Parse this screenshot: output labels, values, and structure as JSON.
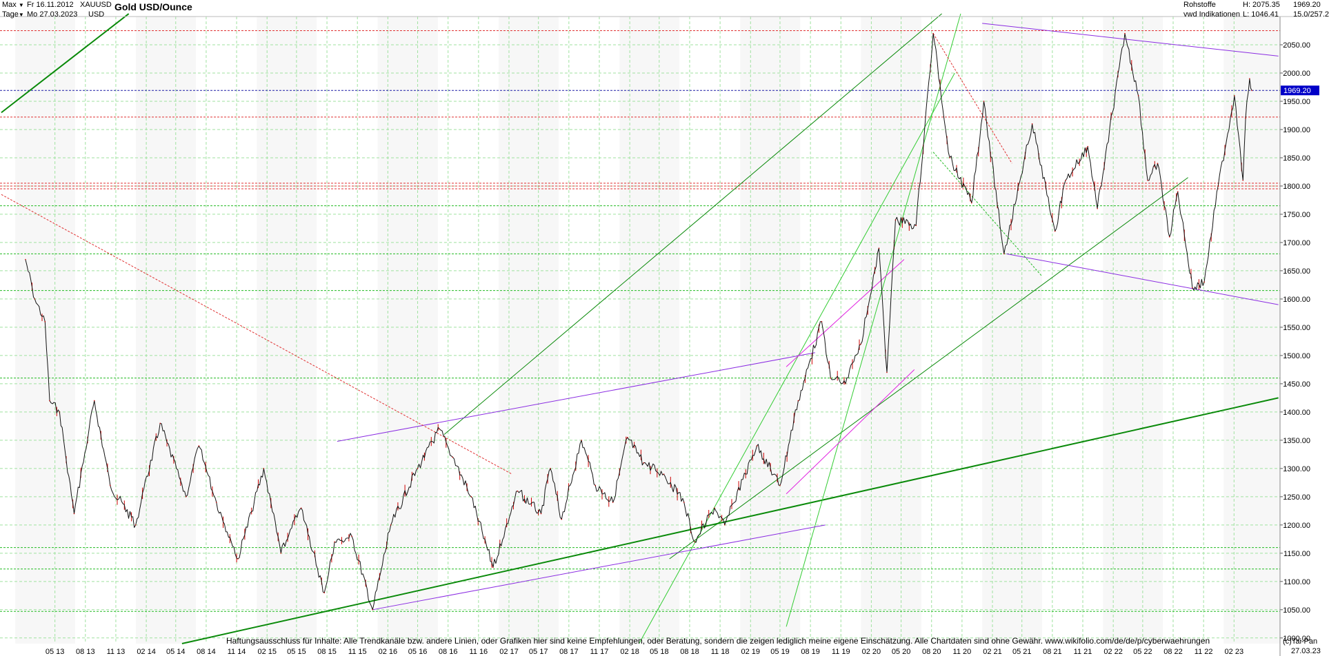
{
  "header": {
    "timeframe": "Max",
    "period": "Tage",
    "date_from": "Fr 16.11.2012",
    "date_to": "Mo 27.03.2023",
    "symbol": "XAUUSD",
    "currency": "USD",
    "title": "Gold USD/Ounce",
    "category": "Rohstoffe",
    "source": "vwd Indikationen",
    "high": "H: 2075.35",
    "low": "L: 1046.41",
    "last": "1969.20",
    "change": "15.0/257.2"
  },
  "footer": {
    "disclaimer": "Haftungsausschluss für Inhalte: Alle Trendkanäle bzw. andere Linien, oder Grafiken hier sind keine Empfehlungen, oder Beratung, sondern die zeigen lediglich meine eigene Einschätzung. Alle Chartdaten sind ohne Gewähr.  www.wikifolio.com/de/de/p/cyberwaehrungen",
    "copyright": "(c)Tai-Pan",
    "last_date": "27.03.23"
  },
  "colors": {
    "price_line": "#111111",
    "price_accent": "#cc0000",
    "grid": "#9fe29f",
    "trend_green": "#0a8a0a",
    "trend_light_green": "#33cc33",
    "trend_purple": "#8a2be2",
    "trend_magenta": "#e020e0",
    "resistance_red": "#e03030",
    "current_price_blue": "#1a1aa6",
    "price_tag_bg": "#0000c8"
  },
  "chart_data": {
    "type": "line",
    "title": "Gold USD/Ounce",
    "xlabel": "",
    "ylabel": "",
    "ylim": [
      990,
      2100
    ],
    "grid": true,
    "x_ticks": [
      "05.13",
      "08.13",
      "11.13",
      "02.14",
      "05.14",
      "08.14",
      "11.14",
      "02.15",
      "05.15",
      "08.15",
      "11.15",
      "02.16",
      "05.16",
      "08.16",
      "11.16",
      "02.17",
      "05.17",
      "08.17",
      "11.17",
      "02.18",
      "05.18",
      "08.18",
      "11.18",
      "02.19",
      "05.19",
      "08.19",
      "11.19",
      "02.20",
      "05.20",
      "08.20",
      "11.20",
      "02.21",
      "05.21",
      "08.21",
      "11.21",
      "02.22",
      "05.22",
      "08.22",
      "11.22",
      "02.23"
    ],
    "x_tick_labels": [
      "05 13",
      "08 13",
      "11 13",
      "02 14",
      "05 14",
      "08 14",
      "11 14",
      "02 15",
      "05 15",
      "08 15",
      "11 15",
      "02 16",
      "05 16",
      "08 16",
      "11 16",
      "02 17",
      "05 17",
      "08 17",
      "11 17",
      "02 18",
      "05 18",
      "08 18",
      "11 18",
      "02 19",
      "05 19",
      "08 19",
      "11 19",
      "02 20",
      "05 20",
      "08 20",
      "11 20",
      "02 21",
      "05 21",
      "08 21",
      "11 21",
      "02 22",
      "05 22",
      "08 22",
      "11 22",
      "02 23"
    ],
    "y_ticks": [
      1000,
      1050,
      1100,
      1150,
      1200,
      1250,
      1300,
      1350,
      1400,
      1450,
      1500,
      1550,
      1600,
      1650,
      1700,
      1750,
      1800,
      1850,
      1900,
      1950,
      2000,
      2050
    ],
    "y_tick_labels": [
      "1000.00",
      "1050.00",
      "1100.00",
      "1150.00",
      "1200.00",
      "1250.00",
      "1300.00",
      "1350.00",
      "1400.00",
      "1450.00",
      "1500.00",
      "1550.00",
      "1600.00",
      "1650.00",
      "1700.00",
      "1750.00",
      "1800.00",
      "1850.00",
      "1900.00",
      "1950.00",
      "2000.00",
      "2050.00"
    ],
    "series": [
      {
        "x": [
          "2013-02-01",
          "2013-03-01",
          "2013-04-01",
          "2013-04-15",
          "2013-05-15",
          "2013-06-28",
          "2013-08-28",
          "2013-10-15",
          "2013-12-31",
          "2014-03-15",
          "2014-06-01",
          "2014-07-10",
          "2014-09-01",
          "2014-11-05",
          "2015-01-22",
          "2015-03-15",
          "2015-05-15",
          "2015-07-24",
          "2015-08-24",
          "2015-10-15",
          "2015-12-17",
          "2016-02-10",
          "2016-05-01",
          "2016-07-06",
          "2016-08-15",
          "2016-10-10",
          "2016-12-15",
          "2017-02-27",
          "2017-05-09",
          "2017-06-06",
          "2017-07-10",
          "2017-09-08",
          "2017-10-20",
          "2017-12-12",
          "2018-01-25",
          "2018-03-15",
          "2018-05-15",
          "2018-07-15",
          "2018-08-16",
          "2018-10-15",
          "2018-11-15",
          "2019-02-20",
          "2019-05-01",
          "2019-06-25",
          "2019-09-04",
          "2019-10-01",
          "2019-11-15",
          "2019-12-31",
          "2020-02-24",
          "2020-03-19",
          "2020-04-14",
          "2020-06-15",
          "2020-08-06",
          "2020-09-25",
          "2020-11-30",
          "2021-01-06",
          "2021-03-08",
          "2021-06-01",
          "2021-08-09",
          "2021-09-10",
          "2021-11-16",
          "2021-12-15",
          "2022-03-08",
          "2022-04-18",
          "2022-05-16",
          "2022-06-15",
          "2022-07-21",
          "2022-08-15",
          "2022-09-28",
          "2022-11-03",
          "2022-12-15",
          "2023-02-02",
          "2023-02-28",
          "2023-03-08",
          "2023-03-20",
          "2023-03-27"
        ],
        "values": [
          1670,
          1600,
          1560,
          1420,
          1400,
          1220,
          1420,
          1270,
          1200,
          1380,
          1250,
          1340,
          1240,
          1140,
          1300,
          1150,
          1230,
          1080,
          1170,
          1180,
          1050,
          1200,
          1300,
          1370,
          1320,
          1250,
          1125,
          1260,
          1220,
          1300,
          1210,
          1350,
          1270,
          1240,
          1355,
          1310,
          1290,
          1240,
          1170,
          1230,
          1200,
          1340,
          1270,
          1420,
          1560,
          1460,
          1450,
          1520,
          1690,
          1470,
          1740,
          1730,
          2070,
          1850,
          1770,
          1950,
          1680,
          1910,
          1720,
          1810,
          1870,
          1760,
          2070,
          1960,
          1810,
          1840,
          1710,
          1790,
          1620,
          1630,
          1800,
          1960,
          1810,
          1920,
          1990,
          1969
        ]
      }
    ],
    "horizontal_levels": [
      {
        "value": 2075,
        "style": "red-dotted"
      },
      {
        "value": 1969.2,
        "style": "blue-dotted"
      },
      {
        "value": 1922,
        "style": "red-dotted"
      },
      {
        "value": 1805,
        "style": "red-dotted"
      },
      {
        "value": 1800,
        "style": "red-dotted"
      },
      {
        "value": 1795,
        "style": "red-dotted"
      },
      {
        "value": 1765,
        "style": "green-dotted"
      },
      {
        "value": 1680,
        "style": "green-dotted"
      },
      {
        "value": 1615,
        "style": "green-dotted"
      },
      {
        "value": 1460,
        "style": "green-dotted"
      },
      {
        "value": 1160,
        "style": "green-dotted"
      },
      {
        "value": 1122,
        "style": "green-dotted"
      },
      {
        "value": 1047,
        "style": "green-dotted"
      }
    ],
    "trend_lines": [
      {
        "from": [
          "2012-11-20",
          1930
        ],
        "to": [
          "2013-12-10",
          2105
        ],
        "color": "green",
        "width": 2
      },
      {
        "from": [
          "2014-05-20",
          990
        ],
        "to": [
          "2023-06-15",
          1425
        ],
        "color": "green",
        "width": 2
      },
      {
        "from": [
          "2016-07-20",
          1360
        ],
        "to": [
          "2020-09-01",
          2105
        ],
        "color": "green",
        "width": 1
      },
      {
        "from": [
          "2018-06-01",
          1140
        ],
        "to": [
          "2022-09-15",
          1815
        ],
        "color": "green",
        "width": 1
      },
      {
        "from": [
          "2018-03-01",
          990
        ],
        "to": [
          "2020-10-10",
          2000
        ],
        "color": "light-green",
        "width": 1
      },
      {
        "from": [
          "2019-05-20",
          1020
        ],
        "to": [
          "2020-10-28",
          2105
        ],
        "color": "light-green",
        "width": 1
      },
      {
        "from": [
          "2015-12-17",
          1050
        ],
        "to": [
          "2019-09-15",
          1200
        ],
        "color": "purple",
        "width": 1
      },
      {
        "from": [
          "2015-09-01",
          1348
        ],
        "to": [
          "2019-08-15",
          1505
        ],
        "color": "purple",
        "width": 1
      },
      {
        "from": [
          "2021-01-01",
          2088
        ],
        "to": [
          "2023-06-15",
          2030
        ],
        "color": "purple",
        "width": 1
      },
      {
        "from": [
          "2021-03-15",
          1680
        ],
        "to": [
          "2023-06-15",
          1590
        ],
        "color": "purple",
        "width": 1
      },
      {
        "from": [
          "2019-05-20",
          1480
        ],
        "to": [
          "2020-05-10",
          1670
        ],
        "color": "magenta",
        "width": 1
      },
      {
        "from": [
          "2019-05-20",
          1255
        ],
        "to": [
          "2020-06-10",
          1475
        ],
        "color": "magenta",
        "width": 1
      },
      {
        "from": [
          "2012-11-20",
          1785
        ],
        "to": [
          "2017-02-10",
          1290
        ],
        "color": "red-dotted",
        "width": 1
      },
      {
        "from": [
          "2020-08-06",
          2070
        ],
        "to": [
          "2021-04-01",
          1840
        ],
        "color": "red-dotted",
        "width": 1
      },
      {
        "from": [
          "2020-08-06",
          1860
        ],
        "to": [
          "2021-07-01",
          1640
        ],
        "color": "green-dotted",
        "width": 1
      }
    ]
  }
}
